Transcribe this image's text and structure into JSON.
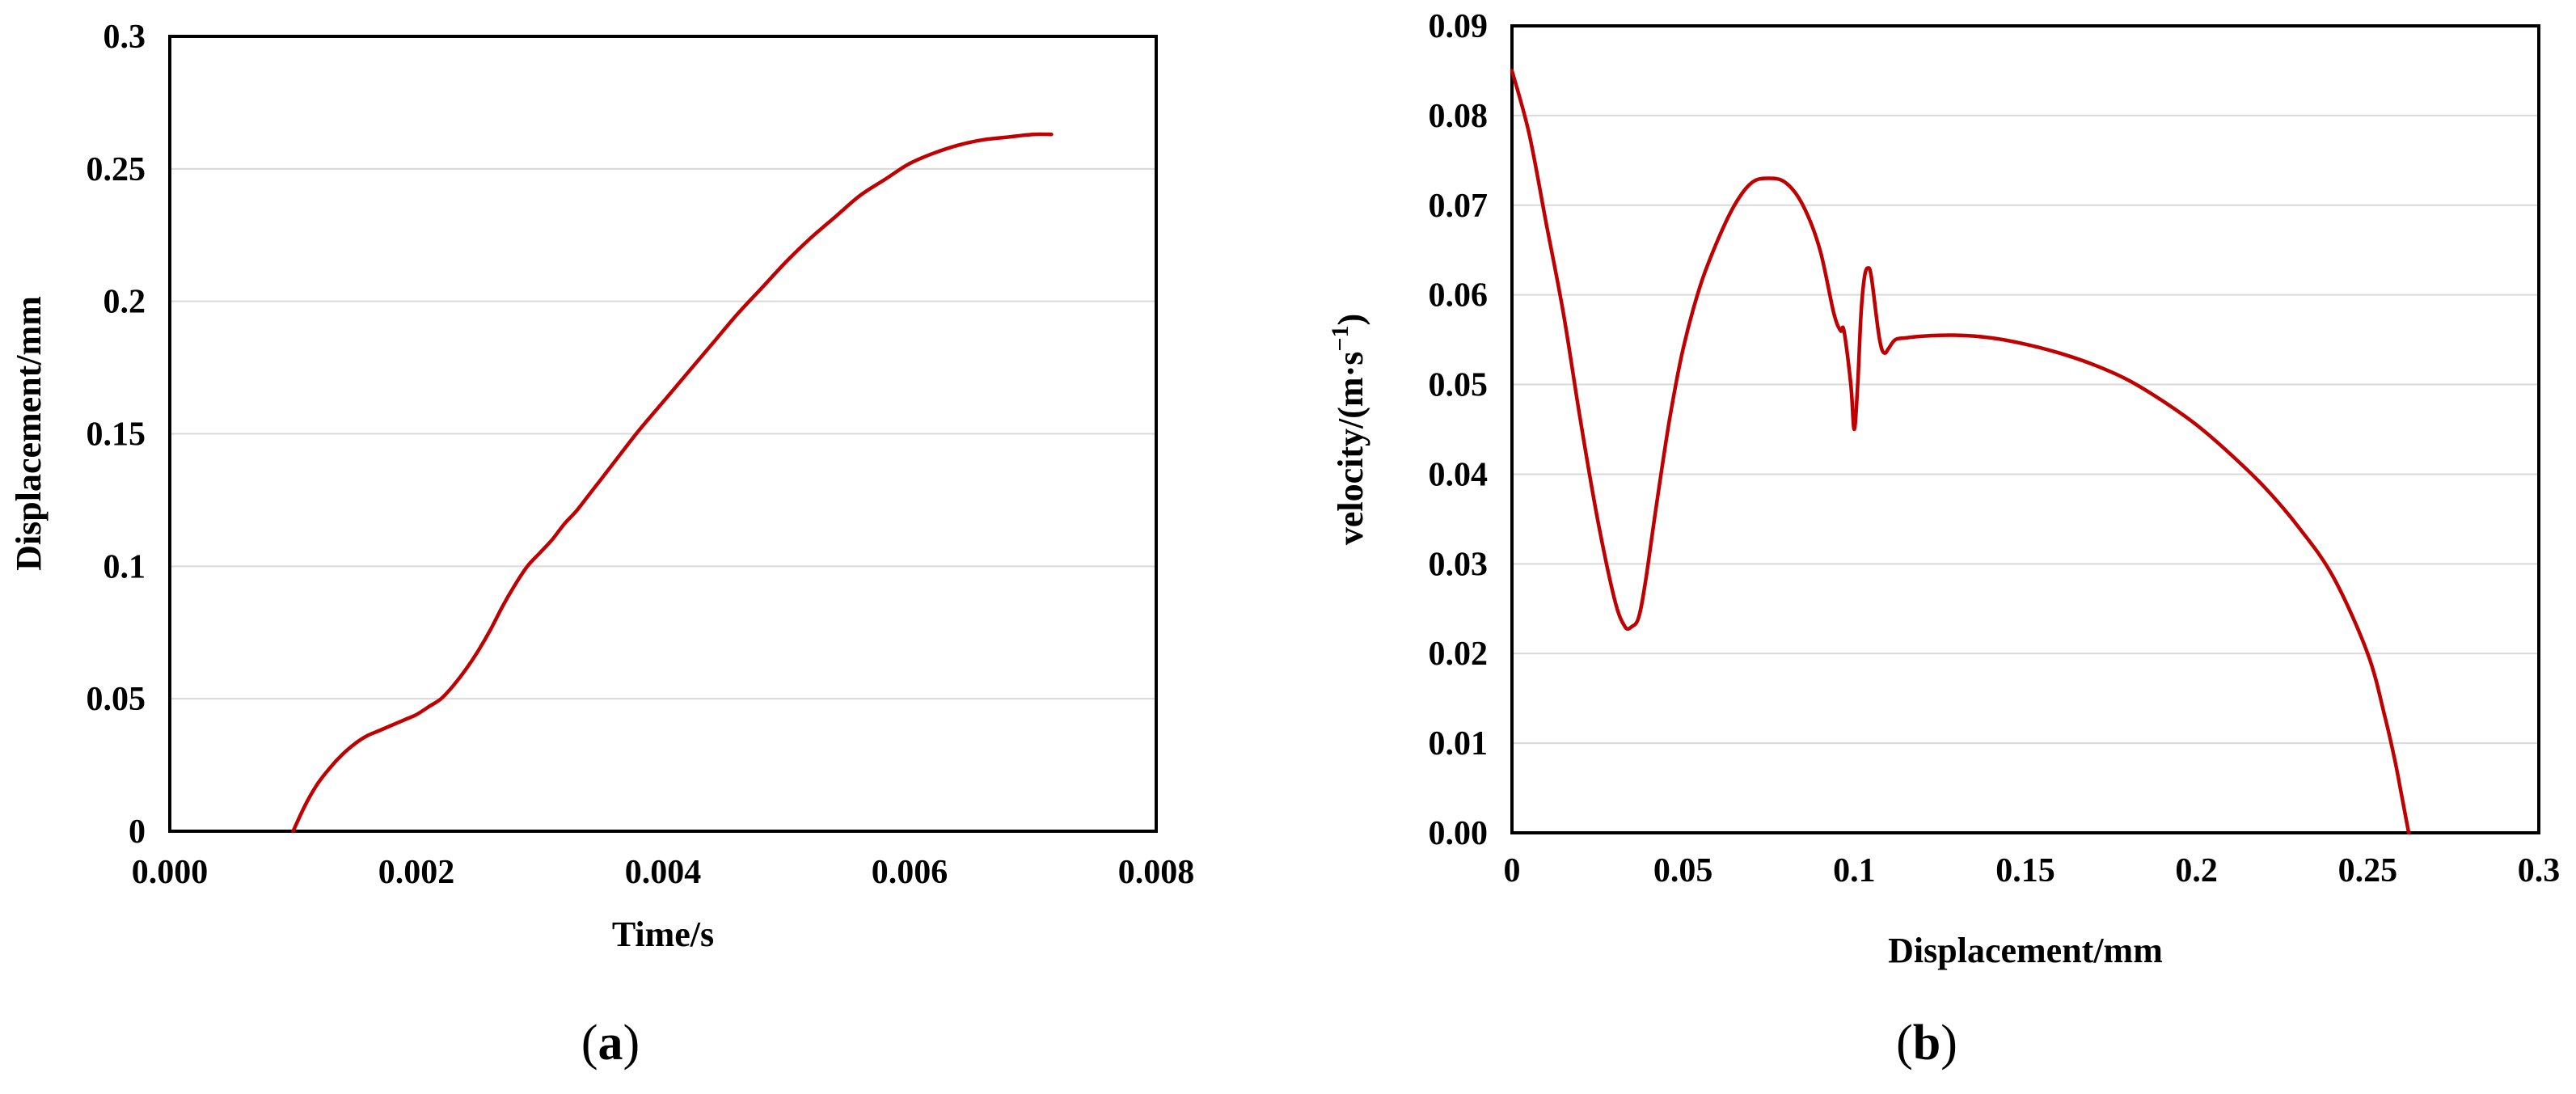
{
  "chart_data": [
    {
      "panel": "a",
      "type": "line",
      "xlabel": "Time/s",
      "ylabel": "Displacement/mm",
      "xlim": [
        0,
        0.008
      ],
      "ylim": [
        0,
        0.3
      ],
      "xticks": [
        "0.000",
        "0.002",
        "0.004",
        "0.006",
        "0.008"
      ],
      "yticks": [
        "0",
        "0.05",
        "0.1",
        "0.15",
        "0.2",
        "0.25",
        "0.3"
      ],
      "grid": "horizontal",
      "line_color": "#c00000",
      "series": [
        {
          "x": [
            0.001,
            0.0011,
            0.0012,
            0.0013,
            0.0014,
            0.0015,
            0.0016,
            0.0017,
            0.0018,
            0.0019,
            0.002,
            0.0021,
            0.0022,
            0.0023,
            0.0024,
            0.0025,
            0.0026,
            0.0027,
            0.0028,
            0.0029,
            0.003,
            0.0031,
            0.0032,
            0.0033,
            0.0034,
            0.0035,
            0.0036,
            0.0038,
            0.004,
            0.0042,
            0.0044,
            0.0046,
            0.0048,
            0.005,
            0.0052,
            0.0054,
            0.0056,
            0.0058,
            0.006,
            0.0062,
            0.0064,
            0.0066,
            0.0068,
            0.007,
            0.00715
          ],
          "y": [
            0.0,
            0.01,
            0.018,
            0.024,
            0.029,
            0.033,
            0.036,
            0.038,
            0.04,
            0.042,
            0.044,
            0.047,
            0.05,
            0.055,
            0.061,
            0.068,
            0.076,
            0.085,
            0.093,
            0.1,
            0.105,
            0.11,
            0.116,
            0.121,
            0.127,
            0.133,
            0.139,
            0.151,
            0.162,
            0.173,
            0.184,
            0.195,
            0.205,
            0.215,
            0.224,
            0.232,
            0.24,
            0.246,
            0.252,
            0.256,
            0.259,
            0.261,
            0.262,
            0.263,
            0.263
          ]
        }
      ],
      "caption": "a"
    },
    {
      "panel": "b",
      "type": "line",
      "xlabel": "Displacement/mm",
      "ylabel": "velocity/(m·s",
      "ylabel_sup": "−1",
      "ylabel_end": ")",
      "xlim": [
        0,
        0.3
      ],
      "ylim": [
        0,
        0.09
      ],
      "xticks": [
        "0",
        "0.05",
        "0.1",
        "0.15",
        "0.2",
        "0.25",
        "0.3"
      ],
      "yticks": [
        "0.00",
        "0.01",
        "0.02",
        "0.03",
        "0.04",
        "0.05",
        "0.06",
        "0.07",
        "0.08",
        "0.09"
      ],
      "grid": "horizontal",
      "line_color": "#c00000",
      "series": [
        {
          "x": [
            0.0,
            0.005,
            0.01,
            0.015,
            0.02,
            0.025,
            0.03,
            0.033,
            0.035,
            0.037,
            0.039,
            0.042,
            0.046,
            0.05,
            0.055,
            0.06,
            0.065,
            0.07,
            0.075,
            0.08,
            0.085,
            0.09,
            0.094,
            0.096,
            0.097,
            0.099,
            0.1,
            0.101,
            0.102,
            0.103,
            0.104,
            0.105,
            0.107,
            0.108,
            0.109,
            0.11,
            0.112,
            0.115,
            0.12,
            0.13,
            0.14,
            0.15,
            0.16,
            0.17,
            0.18,
            0.19,
            0.2,
            0.21,
            0.22,
            0.23,
            0.24,
            0.25,
            0.255,
            0.258,
            0.26,
            0.261,
            0.262
          ],
          "y": [
            0.085,
            0.078,
            0.068,
            0.058,
            0.046,
            0.035,
            0.026,
            0.023,
            0.023,
            0.024,
            0.028,
            0.036,
            0.046,
            0.054,
            0.061,
            0.066,
            0.07,
            0.0725,
            0.073,
            0.0725,
            0.07,
            0.065,
            0.058,
            0.056,
            0.056,
            0.05,
            0.045,
            0.05,
            0.058,
            0.062,
            0.063,
            0.062,
            0.056,
            0.054,
            0.0535,
            0.054,
            0.055,
            0.0552,
            0.0554,
            0.0555,
            0.0552,
            0.0545,
            0.0535,
            0.0522,
            0.0505,
            0.0482,
            0.0455,
            0.0422,
            0.0385,
            0.034,
            0.0285,
            0.02,
            0.013,
            0.008,
            0.004,
            0.002,
            0.0
          ]
        }
      ],
      "caption": "b"
    }
  ]
}
